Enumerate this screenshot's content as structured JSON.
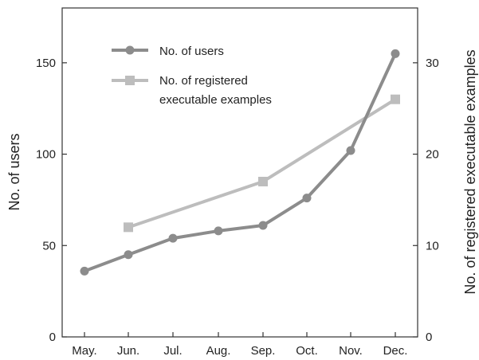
{
  "chart_data": {
    "type": "line",
    "categories": [
      "May.",
      "Jun.",
      "Jul.",
      "Aug.",
      "Sep.",
      "Oct.",
      "Nov.",
      "Dec."
    ],
    "left_axis": {
      "label": "No. of users",
      "ylim": [
        0,
        180
      ],
      "ticks": [
        "0",
        "50",
        "100",
        "150"
      ],
      "tick_values": [
        0,
        50,
        100,
        150
      ]
    },
    "right_axis": {
      "label": "No. of registered executable examples",
      "ylim": [
        0,
        36
      ],
      "ticks": [
        "0",
        "10",
        "20",
        "30"
      ],
      "tick_values": [
        0,
        10,
        20,
        30
      ]
    },
    "series": [
      {
        "name": "No. of users",
        "axis": "left",
        "marker": "circle",
        "color": "#8c8c8c",
        "values": [
          36,
          45,
          54,
          58,
          61,
          76,
          102,
          155
        ]
      },
      {
        "name": "No. of registered executable examples",
        "legend_lines": [
          "No. of registered",
          "executable examples"
        ],
        "axis": "right",
        "marker": "square",
        "color": "#bdbdbd",
        "values": [
          null,
          12,
          null,
          null,
          17,
          null,
          null,
          26
        ]
      }
    ],
    "legend_position": "top-left",
    "grid": false
  }
}
